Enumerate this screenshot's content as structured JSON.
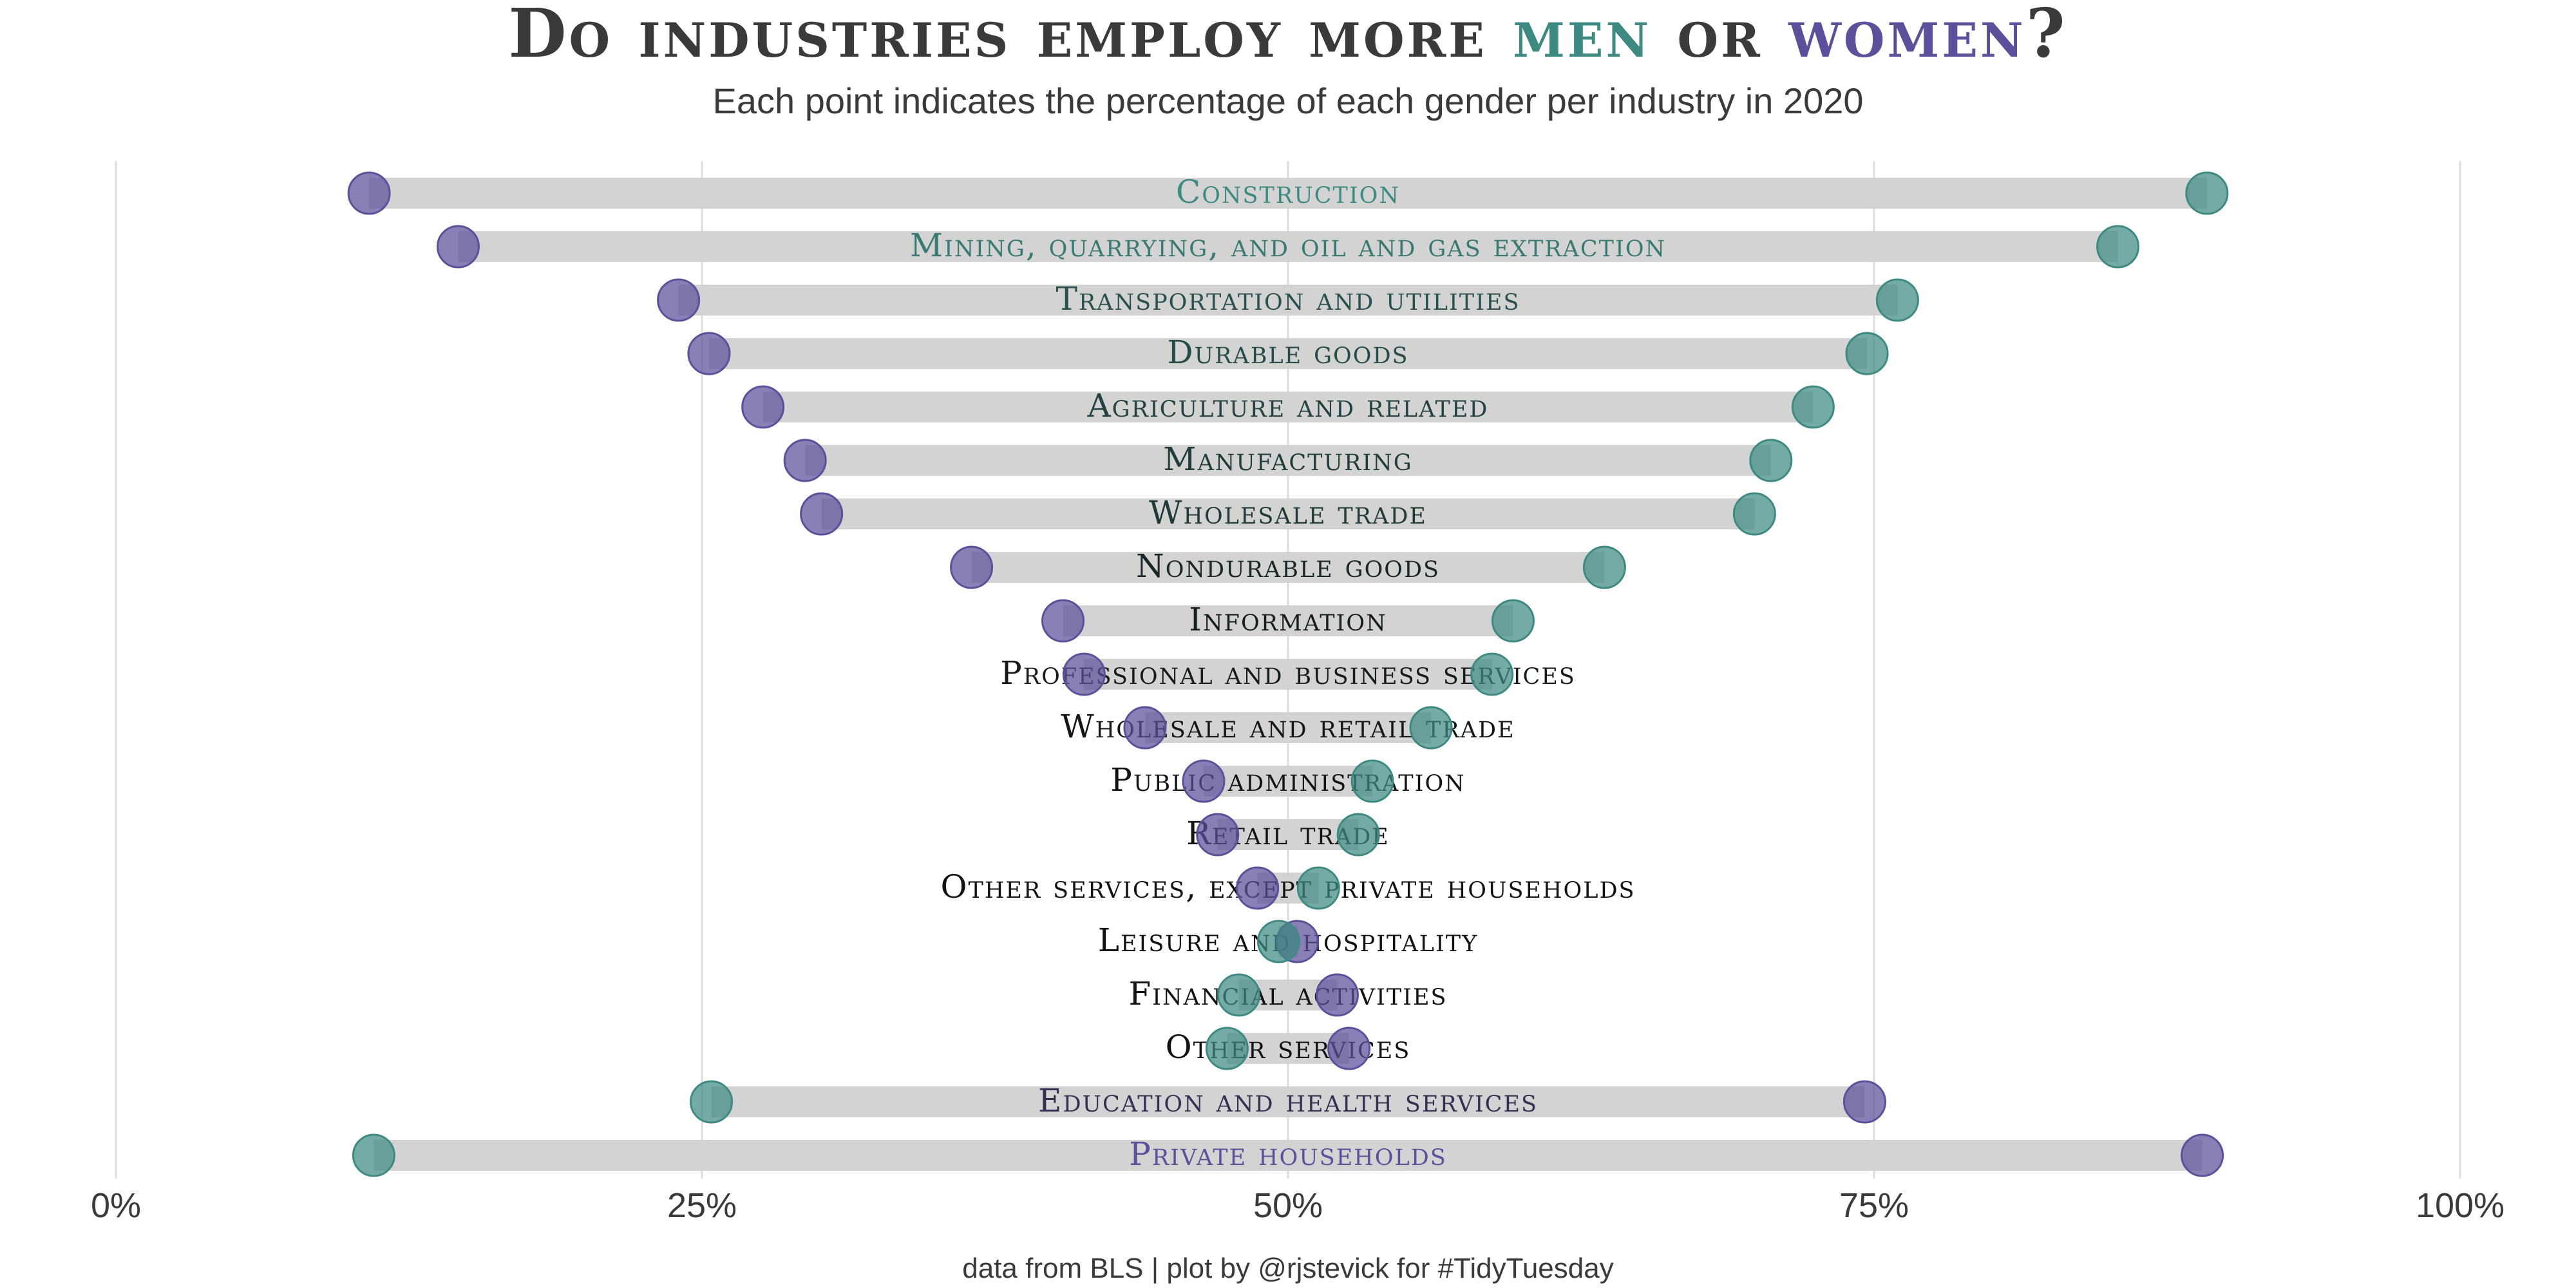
{
  "title": {
    "part1": "Do industries employ more ",
    "men_word": "men",
    "part2": " or ",
    "women_word": "women",
    "part3": "?"
  },
  "subtitle": "Each point indicates the percentage of each gender per industry in 2020",
  "caption": "data from BLS | plot by @rjstevick for #TidyTuesday",
  "colors": {
    "men": "#3e8a82",
    "women": "#5e4f9a",
    "bar": "#d3d3d3",
    "grid": "#dcdcdc",
    "title": "#3a3a3a",
    "label_dark": "#111111"
  },
  "chart_data": {
    "type": "dumbbell",
    "x_range": [
      0,
      100
    ],
    "x_unit": "%",
    "x_ticks": [
      "0%",
      "25%",
      "50%",
      "75%",
      "100%"
    ],
    "series": [
      {
        "name": "men"
      },
      {
        "name": "women"
      }
    ],
    "industries": [
      {
        "name": "Construction",
        "men": 89.2,
        "women": 10.8
      },
      {
        "name": "Mining, quarrying, and oil and gas extraction",
        "men": 85.4,
        "women": 14.6
      },
      {
        "name": "Transportation and utilities",
        "men": 76.0,
        "women": 24.0
      },
      {
        "name": "Durable goods",
        "men": 74.7,
        "women": 25.3
      },
      {
        "name": "Agriculture and related",
        "men": 72.4,
        "women": 27.6
      },
      {
        "name": "Manufacturing",
        "men": 70.6,
        "women": 29.4
      },
      {
        "name": "Wholesale trade",
        "men": 69.9,
        "women": 30.1
      },
      {
        "name": "Nondurable goods",
        "men": 63.5,
        "women": 36.5
      },
      {
        "name": "Information",
        "men": 59.6,
        "women": 40.4
      },
      {
        "name": "Professional and business services",
        "men": 58.7,
        "women": 41.3
      },
      {
        "name": "Wholesale and retail trade",
        "men": 56.1,
        "women": 43.9
      },
      {
        "name": "Public administration",
        "men": 53.6,
        "women": 46.4
      },
      {
        "name": "Retail trade",
        "men": 53.0,
        "women": 47.0
      },
      {
        "name": "Other services, except private households",
        "men": 51.3,
        "women": 48.7
      },
      {
        "name": "Leisure and hospitality",
        "men": 49.6,
        "women": 50.4
      },
      {
        "name": "Financial activities",
        "men": 47.9,
        "women": 52.1
      },
      {
        "name": "Other services",
        "men": 47.4,
        "women": 52.6
      },
      {
        "name": "Education and health services",
        "men": 25.4,
        "women": 74.6
      },
      {
        "name": "Private households",
        "men": 11.0,
        "women": 89.0
      }
    ]
  }
}
